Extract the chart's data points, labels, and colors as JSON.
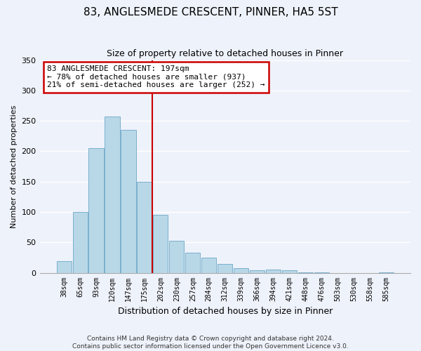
{
  "title": "83, ANGLESMEDE CRESCENT, PINNER, HA5 5ST",
  "subtitle": "Size of property relative to detached houses in Pinner",
  "xlabel": "Distribution of detached houses by size in Pinner",
  "ylabel": "Number of detached properties",
  "bar_labels": [
    "38sqm",
    "65sqm",
    "93sqm",
    "120sqm",
    "147sqm",
    "175sqm",
    "202sqm",
    "230sqm",
    "257sqm",
    "284sqm",
    "312sqm",
    "339sqm",
    "366sqm",
    "394sqm",
    "421sqm",
    "448sqm",
    "476sqm",
    "503sqm",
    "530sqm",
    "558sqm",
    "585sqm"
  ],
  "bar_values": [
    19,
    100,
    205,
    257,
    235,
    150,
    95,
    53,
    33,
    25,
    14,
    8,
    4,
    5,
    4,
    1,
    1,
    0,
    0,
    0,
    1
  ],
  "bar_color": "#b8d8e8",
  "bar_edge_color": "#7ab0cc",
  "vline_index": 6,
  "ylim": [
    0,
    350
  ],
  "yticks": [
    0,
    50,
    100,
    150,
    200,
    250,
    300,
    350
  ],
  "annotation_text": "83 ANGLESMEDE CRESCENT: 197sqm\n← 78% of detached houses are smaller (937)\n21% of semi-detached houses are larger (252) →",
  "annotation_box_color": "#ffffff",
  "annotation_box_edge": "#cc0000",
  "vline_color": "#cc0000",
  "footer_line1": "Contains HM Land Registry data © Crown copyright and database right 2024.",
  "footer_line2": "Contains public sector information licensed under the Open Government Licence v3.0.",
  "bg_color": "#eef2fa",
  "grid_color": "#ffffff",
  "title_fontsize": 11,
  "subtitle_fontsize": 9,
  "xlabel_fontsize": 9,
  "ylabel_fontsize": 8,
  "tick_fontsize": 7,
  "footer_fontsize": 6.5
}
